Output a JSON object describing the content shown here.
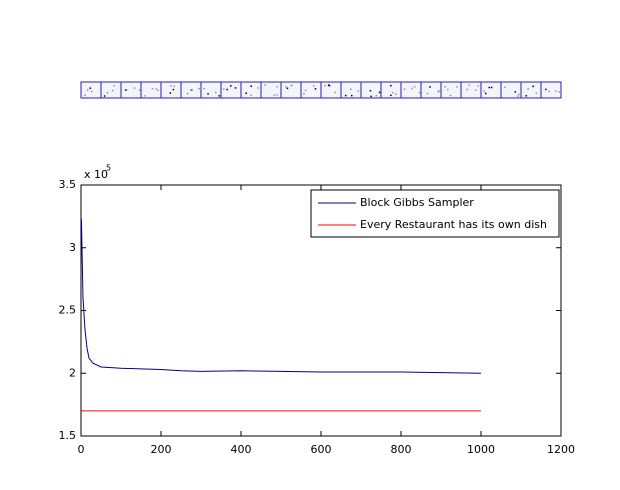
{
  "chart_data": {
    "type": "line",
    "y_multiplier": {
      "base": "x 10",
      "exponent": "5"
    },
    "xlim": [
      0,
      1200
    ],
    "xticks": [
      0,
      200,
      400,
      600,
      800,
      1000,
      1200
    ],
    "ylim": [
      1.5,
      3.5
    ],
    "yticks": [
      1.5,
      2,
      2.5,
      3,
      3.5
    ],
    "grid": false,
    "legend": "upper right",
    "series": [
      {
        "name": "Block Gibbs Sampler",
        "color": "#00008b",
        "x": [
          1,
          5,
          10,
          15,
          20,
          30,
          40,
          50,
          75,
          100,
          150,
          200,
          250,
          300,
          400,
          500,
          600,
          700,
          800,
          900,
          1000
        ],
        "values": [
          3.23,
          2.6,
          2.35,
          2.2,
          2.12,
          2.08,
          2.065,
          2.05,
          2.045,
          2.04,
          2.035,
          2.03,
          2.02,
          2.015,
          2.02,
          2.015,
          2.01,
          2.01,
          2.01,
          2.005,
          2.0
        ]
      },
      {
        "name": "Every Restaurant has its own dish",
        "color": "#ff0000",
        "x": [
          1,
          1000
        ],
        "values": [
          1.7,
          1.7
        ]
      }
    ]
  }
}
